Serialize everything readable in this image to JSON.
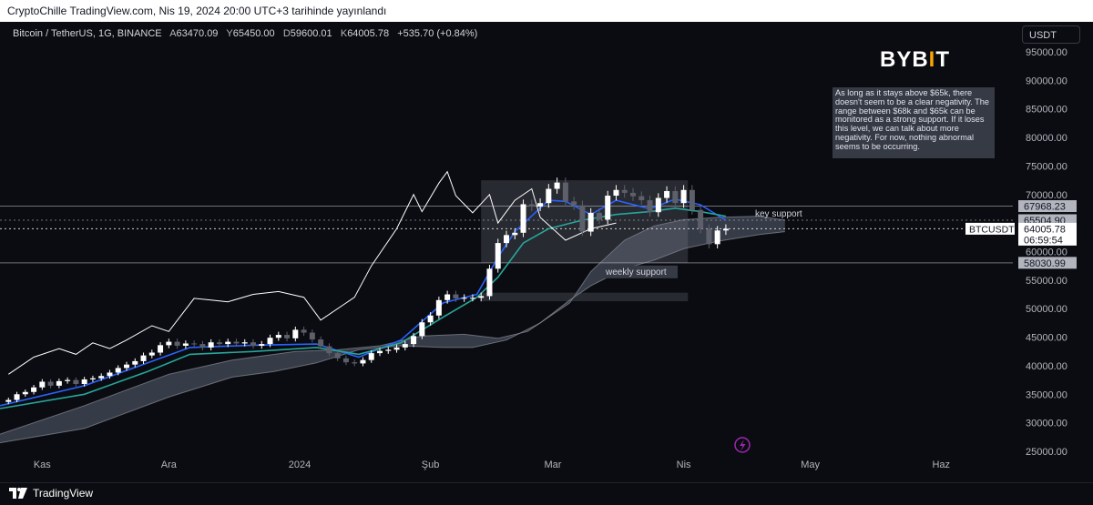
{
  "header": {
    "title": "CryptoChille TradingView.com, Nis 19, 2024 20:00 UTC+3 tarihinde yayınlandı"
  },
  "legend": {
    "symbol": "Bitcoin / TetherUS, 1G, BINANCE",
    "open_label": "A",
    "open": "63470.09",
    "high_label": "Y",
    "high": "65450.00",
    "low_label": "D",
    "low": "59600.01",
    "close_label": "K",
    "close": "64005.78",
    "change": "+535.70 (+0.84%)"
  },
  "currency_button": "USDT",
  "watermark": "BYBIT",
  "annotation_note": "As long as it stays above $65k, there doesn't seem to be a clear negativity. The range between $68k and $65k can be monitored as a strong support. If it loses this level, we can talk about more negativity. For now, nothing abnormal seems to be occurring.",
  "labels": {
    "key_support": "key support",
    "weekly_support": "weekly support"
  },
  "price_tags": [
    {
      "value": "67968.23",
      "style": "grey"
    },
    {
      "value": "65504.90",
      "style": "grey"
    },
    {
      "value": "64005.78",
      "style": "white"
    },
    {
      "value": "06:59:54",
      "style": "white"
    },
    {
      "value": "58030.99",
      "style": "grey"
    }
  ],
  "symbol_tag": "BTCUSDT",
  "footer": {
    "brand": "TradingView"
  },
  "colors": {
    "background": "#0b0c11",
    "tenkan": "#2962ff",
    "kijun": "#26a69a",
    "cloud": "#b2b5be",
    "candle_up": "#ffffff",
    "candle_down": "#363a45",
    "accent": "#f7a600"
  },
  "chart_data": {
    "type": "line",
    "yaxis": {
      "ticks": [
        25000,
        30000,
        35000,
        40000,
        45000,
        50000,
        55000,
        60000,
        65000,
        70000,
        75000,
        80000,
        85000,
        90000,
        95000
      ],
      "tick_labels": [
        "25000.00",
        "30000.00",
        "35000.00",
        "40000.00",
        "45000.00",
        "50000.00",
        "55000.00",
        "60000.00",
        "65000.00",
        "70000.00",
        "75000.00",
        "80000.00",
        "85000.00",
        "90000.00",
        "95000.00"
      ],
      "range": [
        24000,
        99000
      ]
    },
    "xaxis": {
      "ticks": [
        "Kas",
        "Ara",
        "2024",
        "Şub",
        "Mar",
        "Nis",
        "May",
        "Haz"
      ],
      "tick_pos": [
        10,
        40,
        71,
        102,
        131,
        162,
        192,
        223
      ],
      "range": [
        0,
        240
      ]
    },
    "series": [
      {
        "role": "price-close",
        "points": [
          [
            2,
            34000
          ],
          [
            4,
            35000
          ],
          [
            6,
            35400
          ],
          [
            8,
            36200
          ],
          [
            10,
            37200
          ],
          [
            12,
            36500
          ],
          [
            14,
            37300
          ],
          [
            16,
            37500
          ],
          [
            18,
            36800
          ],
          [
            20,
            37600
          ],
          [
            22,
            37800
          ],
          [
            24,
            38200
          ],
          [
            26,
            38800
          ],
          [
            28,
            39600
          ],
          [
            30,
            40200
          ],
          [
            32,
            40800
          ],
          [
            34,
            41800
          ],
          [
            36,
            42300
          ],
          [
            38,
            43600
          ],
          [
            40,
            44200
          ],
          [
            42,
            43500
          ],
          [
            44,
            43900
          ],
          [
            46,
            43800
          ],
          [
            48,
            43200
          ],
          [
            50,
            44100
          ],
          [
            52,
            43800
          ],
          [
            54,
            44200
          ],
          [
            56,
            43900
          ],
          [
            58,
            44100
          ],
          [
            60,
            43500
          ],
          [
            62,
            43800
          ],
          [
            64,
            44900
          ],
          [
            66,
            45400
          ],
          [
            68,
            44800
          ],
          [
            70,
            46300
          ],
          [
            72,
            45800
          ],
          [
            74,
            44600
          ],
          [
            76,
            43400
          ],
          [
            78,
            42200
          ],
          [
            80,
            41300
          ],
          [
            82,
            40600
          ],
          [
            84,
            40400
          ],
          [
            86,
            41000
          ],
          [
            88,
            42200
          ],
          [
            90,
            42600
          ],
          [
            92,
            42800
          ],
          [
            94,
            43200
          ],
          [
            96,
            43800
          ],
          [
            98,
            45200
          ],
          [
            100,
            47600
          ],
          [
            102,
            48800
          ],
          [
            104,
            51500
          ],
          [
            106,
            52500
          ],
          [
            108,
            51800
          ],
          [
            110,
            51900
          ],
          [
            112,
            51900
          ],
          [
            114,
            52200
          ],
          [
            116,
            57000
          ],
          [
            118,
            61500
          ],
          [
            120,
            62900
          ],
          [
            122,
            63300
          ],
          [
            124,
            68300
          ],
          [
            126,
            67900
          ],
          [
            128,
            68500
          ],
          [
            130,
            71000
          ],
          [
            132,
            72100
          ],
          [
            134,
            68800
          ],
          [
            136,
            68100
          ],
          [
            138,
            63500
          ],
          [
            140,
            66800
          ],
          [
            142,
            65600
          ],
          [
            144,
            69800
          ],
          [
            146,
            70800
          ],
          [
            148,
            70300
          ],
          [
            150,
            69700
          ],
          [
            152,
            69000
          ],
          [
            154,
            66900
          ],
          [
            156,
            69400
          ],
          [
            158,
            70600
          ],
          [
            160,
            68500
          ],
          [
            162,
            70800
          ],
          [
            164,
            67300
          ],
          [
            166,
            64000
          ],
          [
            168,
            61300
          ],
          [
            170,
            63700
          ],
          [
            172,
            64005
          ]
        ]
      },
      {
        "role": "tenkan",
        "points": [
          [
            0,
            33000
          ],
          [
            20,
            36500
          ],
          [
            35,
            40500
          ],
          [
            45,
            43200
          ],
          [
            60,
            43600
          ],
          [
            75,
            43800
          ],
          [
            85,
            41500
          ],
          [
            95,
            44500
          ],
          [
            105,
            51000
          ],
          [
            113,
            52500
          ],
          [
            118,
            59000
          ],
          [
            122,
            63500
          ],
          [
            130,
            69000
          ],
          [
            134,
            68800
          ],
          [
            140,
            66500
          ],
          [
            146,
            69000
          ],
          [
            154,
            67500
          ],
          [
            160,
            69200
          ],
          [
            166,
            68200
          ],
          [
            172,
            65500
          ]
        ]
      },
      {
        "role": "kijun",
        "points": [
          [
            0,
            32500
          ],
          [
            20,
            35000
          ],
          [
            35,
            39000
          ],
          [
            45,
            42000
          ],
          [
            60,
            42500
          ],
          [
            75,
            43200
          ],
          [
            85,
            42000
          ],
          [
            95,
            44000
          ],
          [
            105,
            48500
          ],
          [
            113,
            52000
          ],
          [
            118,
            55500
          ],
          [
            124,
            61500
          ],
          [
            130,
            64000
          ],
          [
            138,
            65500
          ],
          [
            146,
            66500
          ],
          [
            154,
            67000
          ],
          [
            160,
            67600
          ],
          [
            166,
            67000
          ],
          [
            172,
            66200
          ]
        ]
      },
      {
        "role": "lagging-span",
        "points": [
          [
            2,
            38500
          ],
          [
            8,
            41500
          ],
          [
            14,
            43000
          ],
          [
            18,
            42000
          ],
          [
            22,
            44000
          ],
          [
            26,
            43000
          ],
          [
            30,
            44500
          ],
          [
            36,
            47000
          ],
          [
            40,
            46000
          ],
          [
            46,
            51800
          ],
          [
            50,
            51500
          ],
          [
            54,
            51200
          ],
          [
            60,
            52500
          ],
          [
            66,
            53000
          ],
          [
            72,
            52000
          ],
          [
            76,
            48000
          ],
          [
            84,
            52000
          ],
          [
            88,
            57500
          ],
          [
            94,
            64000
          ],
          [
            98,
            70000
          ],
          [
            100,
            67000
          ],
          [
            104,
            72000
          ],
          [
            106,
            74000
          ],
          [
            108,
            69800
          ],
          [
            112,
            66800
          ],
          [
            116,
            70000
          ],
          [
            118,
            65000
          ],
          [
            122,
            69000
          ],
          [
            126,
            71000
          ],
          [
            128,
            66000
          ],
          [
            134,
            62000
          ],
          [
            140,
            64000
          ],
          [
            146,
            65000
          ]
        ]
      }
    ],
    "cloud": {
      "upper": [
        [
          0,
          28000
        ],
        [
          20,
          33000
        ],
        [
          40,
          38500
        ],
        [
          55,
          41000
        ],
        [
          70,
          42500
        ],
        [
          80,
          42800
        ],
        [
          90,
          43500
        ],
        [
          100,
          45200
        ],
        [
          110,
          45500
        ],
        [
          118,
          44800
        ],
        [
          125,
          46000
        ],
        [
          135,
          51000
        ],
        [
          140,
          56500
        ],
        [
          148,
          62000
        ],
        [
          155,
          64500
        ],
        [
          162,
          65600
        ],
        [
          170,
          66000
        ],
        [
          180,
          66200
        ],
        [
          186,
          65500
        ]
      ],
      "lower": [
        [
          0,
          26500
        ],
        [
          20,
          29000
        ],
        [
          40,
          34500
        ],
        [
          55,
          38000
        ],
        [
          65,
          39000
        ],
        [
          75,
          40500
        ],
        [
          85,
          42800
        ],
        [
          95,
          43500
        ],
        [
          105,
          43200
        ],
        [
          112,
          43200
        ],
        [
          120,
          44500
        ],
        [
          128,
          47500
        ],
        [
          135,
          51500
        ],
        [
          140,
          54000
        ],
        [
          148,
          57000
        ],
        [
          155,
          58500
        ],
        [
          162,
          60500
        ],
        [
          170,
          61800
        ],
        [
          180,
          63000
        ],
        [
          186,
          63500
        ]
      ]
    },
    "horizontal_levels": [
      {
        "price": 67968.23,
        "label": "67968.23"
      },
      {
        "price": 65504.9,
        "label": "65504.90"
      },
      {
        "price": 64005.78,
        "label": "64005.78"
      },
      {
        "price": 58030.99,
        "label": "58030.99"
      }
    ],
    "zones": [
      {
        "label": "range",
        "x": [
          114,
          163
        ],
        "y": [
          58000,
          72500
        ]
      },
      {
        "label": "weekly",
        "x": [
          114,
          163
        ],
        "y": [
          51300,
          52800
        ]
      }
    ]
  }
}
